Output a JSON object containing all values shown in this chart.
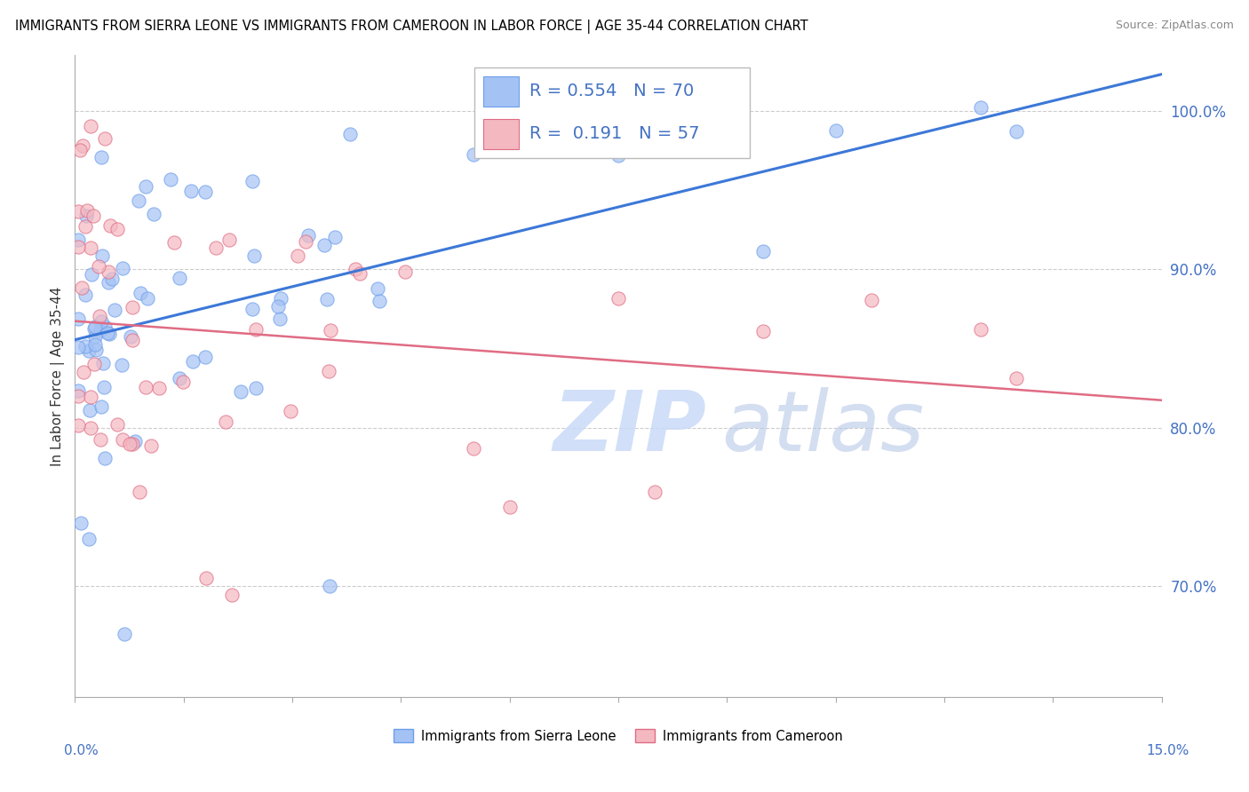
{
  "title": "IMMIGRANTS FROM SIERRA LEONE VS IMMIGRANTS FROM CAMEROON IN LABOR FORCE | AGE 35-44 CORRELATION CHART",
  "source": "Source: ZipAtlas.com",
  "ylabel": "In Labor Force | Age 35-44",
  "xmin": 0.0,
  "xmax": 15.0,
  "ymin": 63.0,
  "ymax": 103.5,
  "yticks": [
    70.0,
    80.0,
    90.0,
    100.0
  ],
  "ytick_labels": [
    "70.0%",
    "80.0%",
    "90.0%",
    "100.0%"
  ],
  "blue_color": "#a4c2f4",
  "pink_color": "#f4b8c1",
  "blue_edge_color": "#6d9eeb",
  "pink_edge_color": "#e06c84",
  "blue_line_color": "#3c78d8",
  "pink_line_color": "#e06c84",
  "R_blue": 0.554,
  "N_blue": 70,
  "R_pink": 0.191,
  "N_pink": 57,
  "legend_label_blue": "Immigrants from Sierra Leone",
  "legend_label_pink": "Immigrants from Cameroon",
  "watermark_color": "#c9daf8",
  "watermark_text1": "ZIP",
  "watermark_text2": "atlas",
  "background_color": "#ffffff",
  "grid_color": "#cccccc",
  "title_color": "#000000",
  "axis_label_color": "#333333",
  "tick_color": "#4472c4",
  "legend_r_color": "#4472c4",
  "legend_n_color": "#4472c4"
}
